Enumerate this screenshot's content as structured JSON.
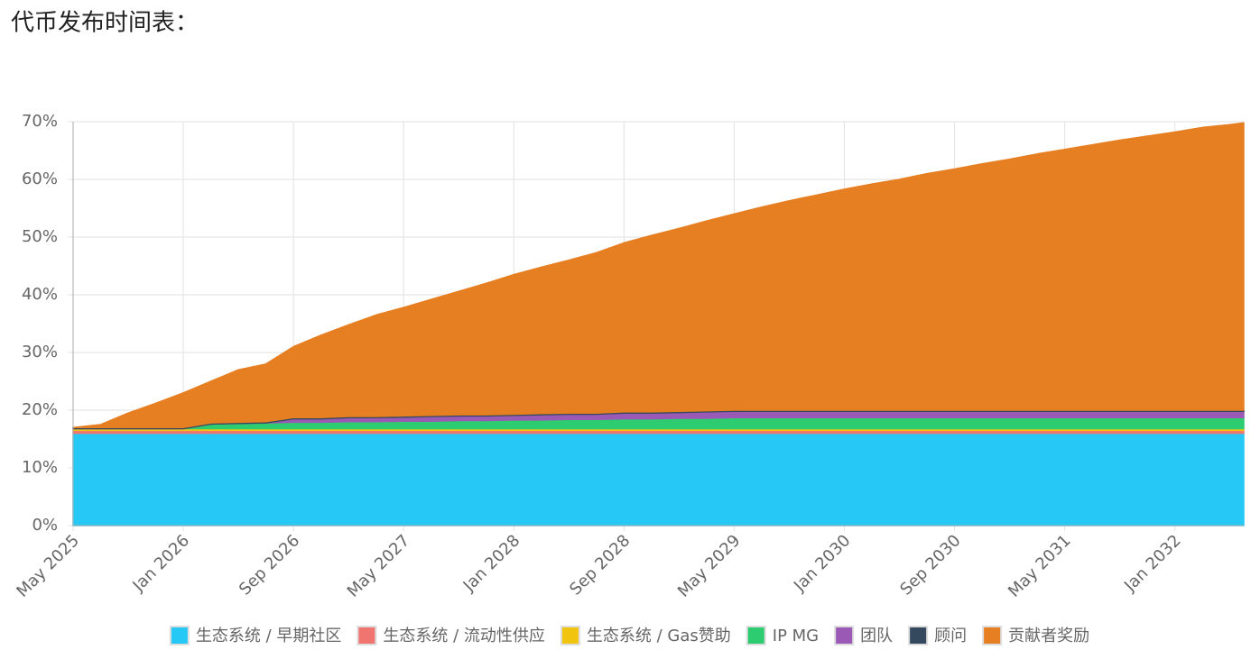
{
  "chart_data": {
    "type": "stacked-area",
    "title": "代币发布时间表：",
    "x": [
      "May 2025",
      "Jul 2025",
      "Sep 2025",
      "Nov 2025",
      "Jan 2026",
      "Mar 2026",
      "May 2026",
      "Jul 2026",
      "Sep 2026",
      "Nov 2026",
      "Jan 2027",
      "Mar 2027",
      "May 2027",
      "Jul 2027",
      "Sep 2027",
      "Nov 2027",
      "Jan 2028",
      "Mar 2028",
      "May 2028",
      "Jul 2028",
      "Sep 2028",
      "Nov 2028",
      "Jan 2029",
      "Mar 2029",
      "May 2029",
      "Jul 2029",
      "Sep 2029",
      "Nov 2029",
      "Jan 2030",
      "Mar 2030",
      "May 2030",
      "Jul 2030",
      "Sep 2030",
      "Nov 2030",
      "Jan 2031",
      "Mar 2031",
      "May 2031",
      "Jul 2031",
      "Sep 2031",
      "Nov 2031",
      "Jan 2032",
      "Mar 2032",
      "May 2032",
      "Jun 2032"
    ],
    "xticks": [
      "May 2025",
      "Jan 2026",
      "Sep 2026",
      "May 2027",
      "Jan 2028",
      "Sep 2028",
      "May 2029",
      "Jan 2030",
      "Sep 2030",
      "May 2031",
      "Jan 2032"
    ],
    "ylim": [
      0,
      70
    ],
    "yticks": [
      {
        "value": 0,
        "label": "0%"
      },
      {
        "value": 10,
        "label": "10%"
      },
      {
        "value": 20,
        "label": "20%"
      },
      {
        "value": 30,
        "label": "30%"
      },
      {
        "value": 40,
        "label": "40%"
      },
      {
        "value": 50,
        "label": "50%"
      },
      {
        "value": 60,
        "label": "60%"
      },
      {
        "value": 70,
        "label": "70%"
      }
    ],
    "grid": true,
    "legend": "bottom",
    "series": [
      {
        "name": "生态系统 / 早期社区",
        "color": "#26c9f5",
        "values": [
          16,
          16,
          16,
          16,
          16,
          16,
          16,
          16,
          16,
          16,
          16,
          16,
          16,
          16,
          16,
          16,
          16,
          16,
          16,
          16,
          16,
          16,
          16,
          16,
          16,
          16,
          16,
          16,
          16,
          16,
          16,
          16,
          16,
          16,
          16,
          16,
          16,
          16,
          16,
          16,
          16,
          16,
          16,
          16
        ]
      },
      {
        "name": "生态系统 / 流动性供应",
        "color": "#f07470",
        "values": [
          0.5,
          0.5,
          0.5,
          0.5,
          0.5,
          0.5,
          0.5,
          0.5,
          0.5,
          0.5,
          0.5,
          0.5,
          0.5,
          0.5,
          0.5,
          0.5,
          0.5,
          0.5,
          0.5,
          0.5,
          0.5,
          0.5,
          0.5,
          0.5,
          0.5,
          0.5,
          0.5,
          0.5,
          0.5,
          0.5,
          0.5,
          0.5,
          0.5,
          0.5,
          0.5,
          0.5,
          0.5,
          0.5,
          0.5,
          0.5,
          0.5,
          0.5,
          0.5,
          0.5
        ]
      },
      {
        "name": "生态系统 / Gas赞助",
        "color": "#f1c40f",
        "values": [
          0.3,
          0.3,
          0.3,
          0.3,
          0.3,
          0.3,
          0.3,
          0.3,
          0.3,
          0.3,
          0.3,
          0.3,
          0.3,
          0.3,
          0.3,
          0.3,
          0.3,
          0.3,
          0.3,
          0.3,
          0.3,
          0.3,
          0.3,
          0.3,
          0.3,
          0.3,
          0.3,
          0.3,
          0.3,
          0.3,
          0.3,
          0.3,
          0.3,
          0.3,
          0.3,
          0.3,
          0.3,
          0.3,
          0.3,
          0.3,
          0.3,
          0.3,
          0.3,
          0.3
        ]
      },
      {
        "name": "IP MG",
        "color": "#2ecc71",
        "values": [
          0,
          0,
          0,
          0,
          0,
          0.8,
          0.9,
          1.0,
          1.1,
          1.1,
          1.2,
          1.2,
          1.3,
          1.3,
          1.4,
          1.4,
          1.5,
          1.5,
          1.6,
          1.6,
          1.7,
          1.7,
          1.8,
          1.8,
          1.9,
          1.9,
          1.9,
          1.9,
          1.9,
          1.9,
          1.9,
          1.9,
          1.9,
          1.9,
          1.9,
          1.9,
          1.9,
          1.9,
          1.9,
          1.9,
          1.9,
          1.9,
          1.9,
          1.9
        ]
      },
      {
        "name": "团队",
        "color": "#9b59b6",
        "values": [
          0,
          0,
          0,
          0,
          0,
          0,
          0,
          0,
          0.6,
          0.6,
          0.7,
          0.7,
          0.7,
          0.8,
          0.8,
          0.8,
          0.8,
          0.9,
          0.9,
          0.9,
          1.0,
          1.0,
          1.0,
          1.1,
          1.1,
          1.1,
          1.1,
          1.1,
          1.1,
          1.1,
          1.1,
          1.1,
          1.1,
          1.1,
          1.1,
          1.1,
          1.1,
          1.1,
          1.1,
          1.1,
          1.1,
          1.1,
          1.1,
          1.1
        ]
      },
      {
        "name": "顾问",
        "color": "#34495e",
        "values": [
          0.2,
          0.2,
          0.2,
          0.2,
          0.2,
          0.2,
          0.2,
          0.2,
          0.2,
          0.2,
          0.2,
          0.2,
          0.2,
          0.2,
          0.2,
          0.2,
          0.2,
          0.2,
          0.2,
          0.2,
          0.2,
          0.2,
          0.2,
          0.2,
          0.2,
          0.2,
          0.2,
          0.2,
          0.2,
          0.2,
          0.2,
          0.2,
          0.2,
          0.2,
          0.2,
          0.2,
          0.2,
          0.2,
          0.2,
          0.2,
          0.2,
          0.2,
          0.2,
          0.2
        ]
      },
      {
        "name": "贡献者奖励",
        "color": "#e67e22",
        "values": [
          0,
          0.5,
          2.5,
          4.2,
          6.0,
          7.2,
          9.1,
          10.0,
          12.3,
          14.3,
          15.9,
          17.6,
          18.8,
          20.1,
          21.4,
          22.8,
          24.2,
          25.4,
          26.5,
          27.8,
          29.3,
          30.6,
          31.7,
          32.9,
          34,
          35.2,
          36.3,
          37.3,
          38.3,
          39.2,
          40,
          41,
          41.8,
          42.7,
          43.5,
          44.4,
          45.2,
          46,
          46.8,
          47.5,
          48.2,
          49,
          49.5,
          49.8
        ]
      }
    ]
  }
}
